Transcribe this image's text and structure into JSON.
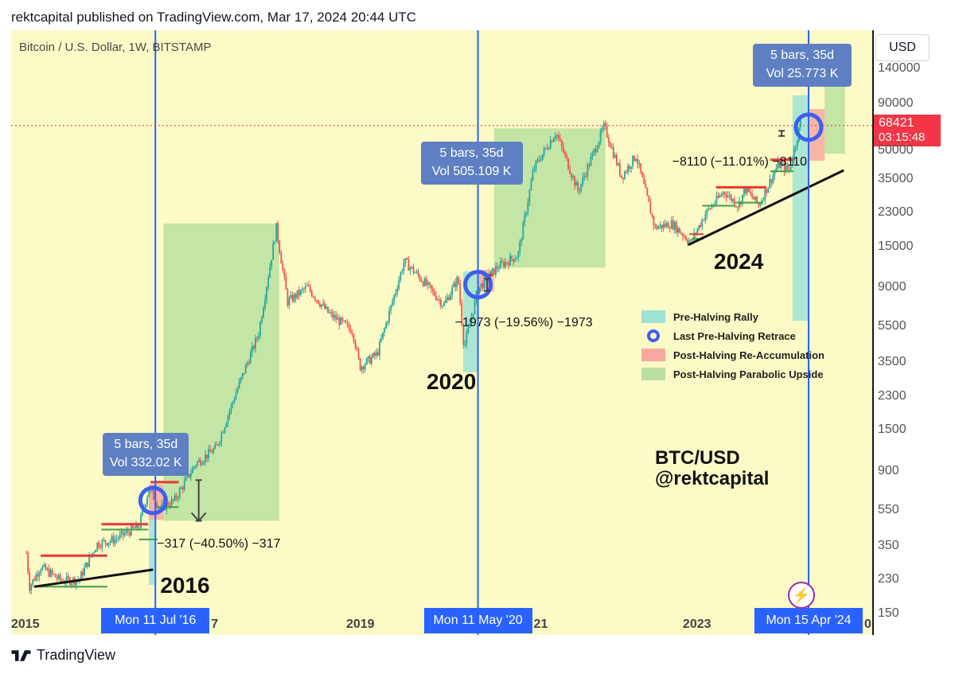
{
  "header": {
    "text": "rektcapital published on TradingView.com, Mar 17, 2024 20:44 UTC"
  },
  "symbol": {
    "text": "Bitcoin / U.S. Dollar, 1W, BITSTAMP"
  },
  "currency": {
    "label": "USD"
  },
  "price_tag": {
    "price": "68421",
    "countdown": "03:15:48",
    "color": "#f23645"
  },
  "footer": {
    "brand": "TradingView"
  },
  "colors": {
    "background": "#fcfac6",
    "halving_line": "#2962ff",
    "pre_halving": "#9fe2d4",
    "retrace_circle": "#3c5ff0",
    "re_accumulation": "#f7a9a0",
    "parabolic": "#b9e0a0",
    "candle_up": "#26a69a",
    "candle_down": "#ef5350"
  },
  "chart_data": {
    "type": "candlestick",
    "title": "Bitcoin / U.S. Dollar, 1W, BITSTAMP",
    "yscale": "log",
    "ylim": [
      115,
      200000
    ],
    "yticks": [
      "140000",
      "90000",
      "50000",
      "35000",
      "23000",
      "15000",
      "9000",
      "5500",
      "3500",
      "2300",
      "1500",
      "900",
      "550",
      "350",
      "230",
      "150"
    ],
    "xticks": [
      {
        "label": "2015",
        "date": "2015-01-01"
      },
      {
        "label": "2019",
        "date": "2019-01-01"
      },
      {
        "label": "2023",
        "date": "2023-01-01"
      }
    ],
    "halvings": [
      {
        "date": "2016-07-11",
        "label": "Mon 11 Jul '16",
        "year_label": "2016",
        "bars_label": "5 bars, 35d",
        "vol_label": "Vol 332.02 K",
        "retrace": "−317 (−40.50%) −317"
      },
      {
        "date": "2020-05-11",
        "label": "Mon 11 May '20",
        "year_label": "2020",
        "bars_label": "5 bars, 35d",
        "vol_label": "Vol 505.109 K",
        "retrace": "−1973 (−19.56%) −1973"
      },
      {
        "date": "2024-04-15",
        "label": "Mon 15 Apr '24",
        "year_label": "2024",
        "bars_label": "5 bars, 35d",
        "vol_label": "Vol 25.773 K",
        "retrace": "−8110 (−11.01%) −8110"
      }
    ],
    "partial_xtick_fragments": [
      "7",
      "21",
      "0"
    ],
    "legend": [
      {
        "label": "Pre-Halving Rally",
        "type": "pre_halving"
      },
      {
        "label": "Last Pre-Halving Retrace",
        "type": "retrace"
      },
      {
        "label": "Post-Halving Re-Accumulation",
        "type": "re_accumulation"
      },
      {
        "label": "Post-Halving Parabolic Upside",
        "type": "parabolic"
      }
    ],
    "annotation": [
      "BTC/USD",
      "@rektcapital"
    ],
    "current_price": 68421,
    "price_path": [
      {
        "date": "2014-12-29",
        "price": 320
      },
      {
        "date": "2015-01-12",
        "price": 210
      },
      {
        "date": "2015-03-01",
        "price": 270
      },
      {
        "date": "2015-06-01",
        "price": 225
      },
      {
        "date": "2015-08-15",
        "price": 230
      },
      {
        "date": "2015-11-01",
        "price": 360
      },
      {
        "date": "2016-01-15",
        "price": 380
      },
      {
        "date": "2016-05-01",
        "price": 450
      },
      {
        "date": "2016-06-13",
        "price": 720
      },
      {
        "date": "2016-08-01",
        "price": 560
      },
      {
        "date": "2016-10-01",
        "price": 620
      },
      {
        "date": "2017-01-01",
        "price": 980
      },
      {
        "date": "2017-04-01",
        "price": 1200
      },
      {
        "date": "2017-07-01",
        "price": 2500
      },
      {
        "date": "2017-10-01",
        "price": 5000
      },
      {
        "date": "2017-12-18",
        "price": 19000
      },
      {
        "date": "2018-02-05",
        "price": 7500
      },
      {
        "date": "2018-05-01",
        "price": 9000
      },
      {
        "date": "2018-08-01",
        "price": 6500
      },
      {
        "date": "2018-11-15",
        "price": 5200
      },
      {
        "date": "2018-12-15",
        "price": 3300
      },
      {
        "date": "2019-03-01",
        "price": 3900
      },
      {
        "date": "2019-06-26",
        "price": 12500
      },
      {
        "date": "2019-09-01",
        "price": 10200
      },
      {
        "date": "2019-12-15",
        "price": 7200
      },
      {
        "date": "2020-02-15",
        "price": 10100
      },
      {
        "date": "2020-03-12",
        "price": 4200
      },
      {
        "date": "2020-05-11",
        "price": 8800
      },
      {
        "date": "2020-08-01",
        "price": 11500
      },
      {
        "date": "2020-11-01",
        "price": 13500
      },
      {
        "date": "2021-01-08",
        "price": 40000
      },
      {
        "date": "2021-04-14",
        "price": 63000
      },
      {
        "date": "2021-07-20",
        "price": 30000
      },
      {
        "date": "2021-11-10",
        "price": 68000
      },
      {
        "date": "2022-01-24",
        "price": 36000
      },
      {
        "date": "2022-03-28",
        "price": 47000
      },
      {
        "date": "2022-06-18",
        "price": 19000
      },
      {
        "date": "2022-09-01",
        "price": 20000
      },
      {
        "date": "2022-11-21",
        "price": 15800
      },
      {
        "date": "2023-01-22",
        "price": 22500
      },
      {
        "date": "2023-04-14",
        "price": 30000
      },
      {
        "date": "2023-06-15",
        "price": 25000
      },
      {
        "date": "2023-07-15",
        "price": 31000
      },
      {
        "date": "2023-09-11",
        "price": 25200
      },
      {
        "date": "2023-12-05",
        "price": 42000
      },
      {
        "date": "2024-01-22",
        "price": 39000
      },
      {
        "date": "2024-03-14",
        "price": 73000
      },
      {
        "date": "2024-03-17",
        "price": 68421
      }
    ]
  }
}
